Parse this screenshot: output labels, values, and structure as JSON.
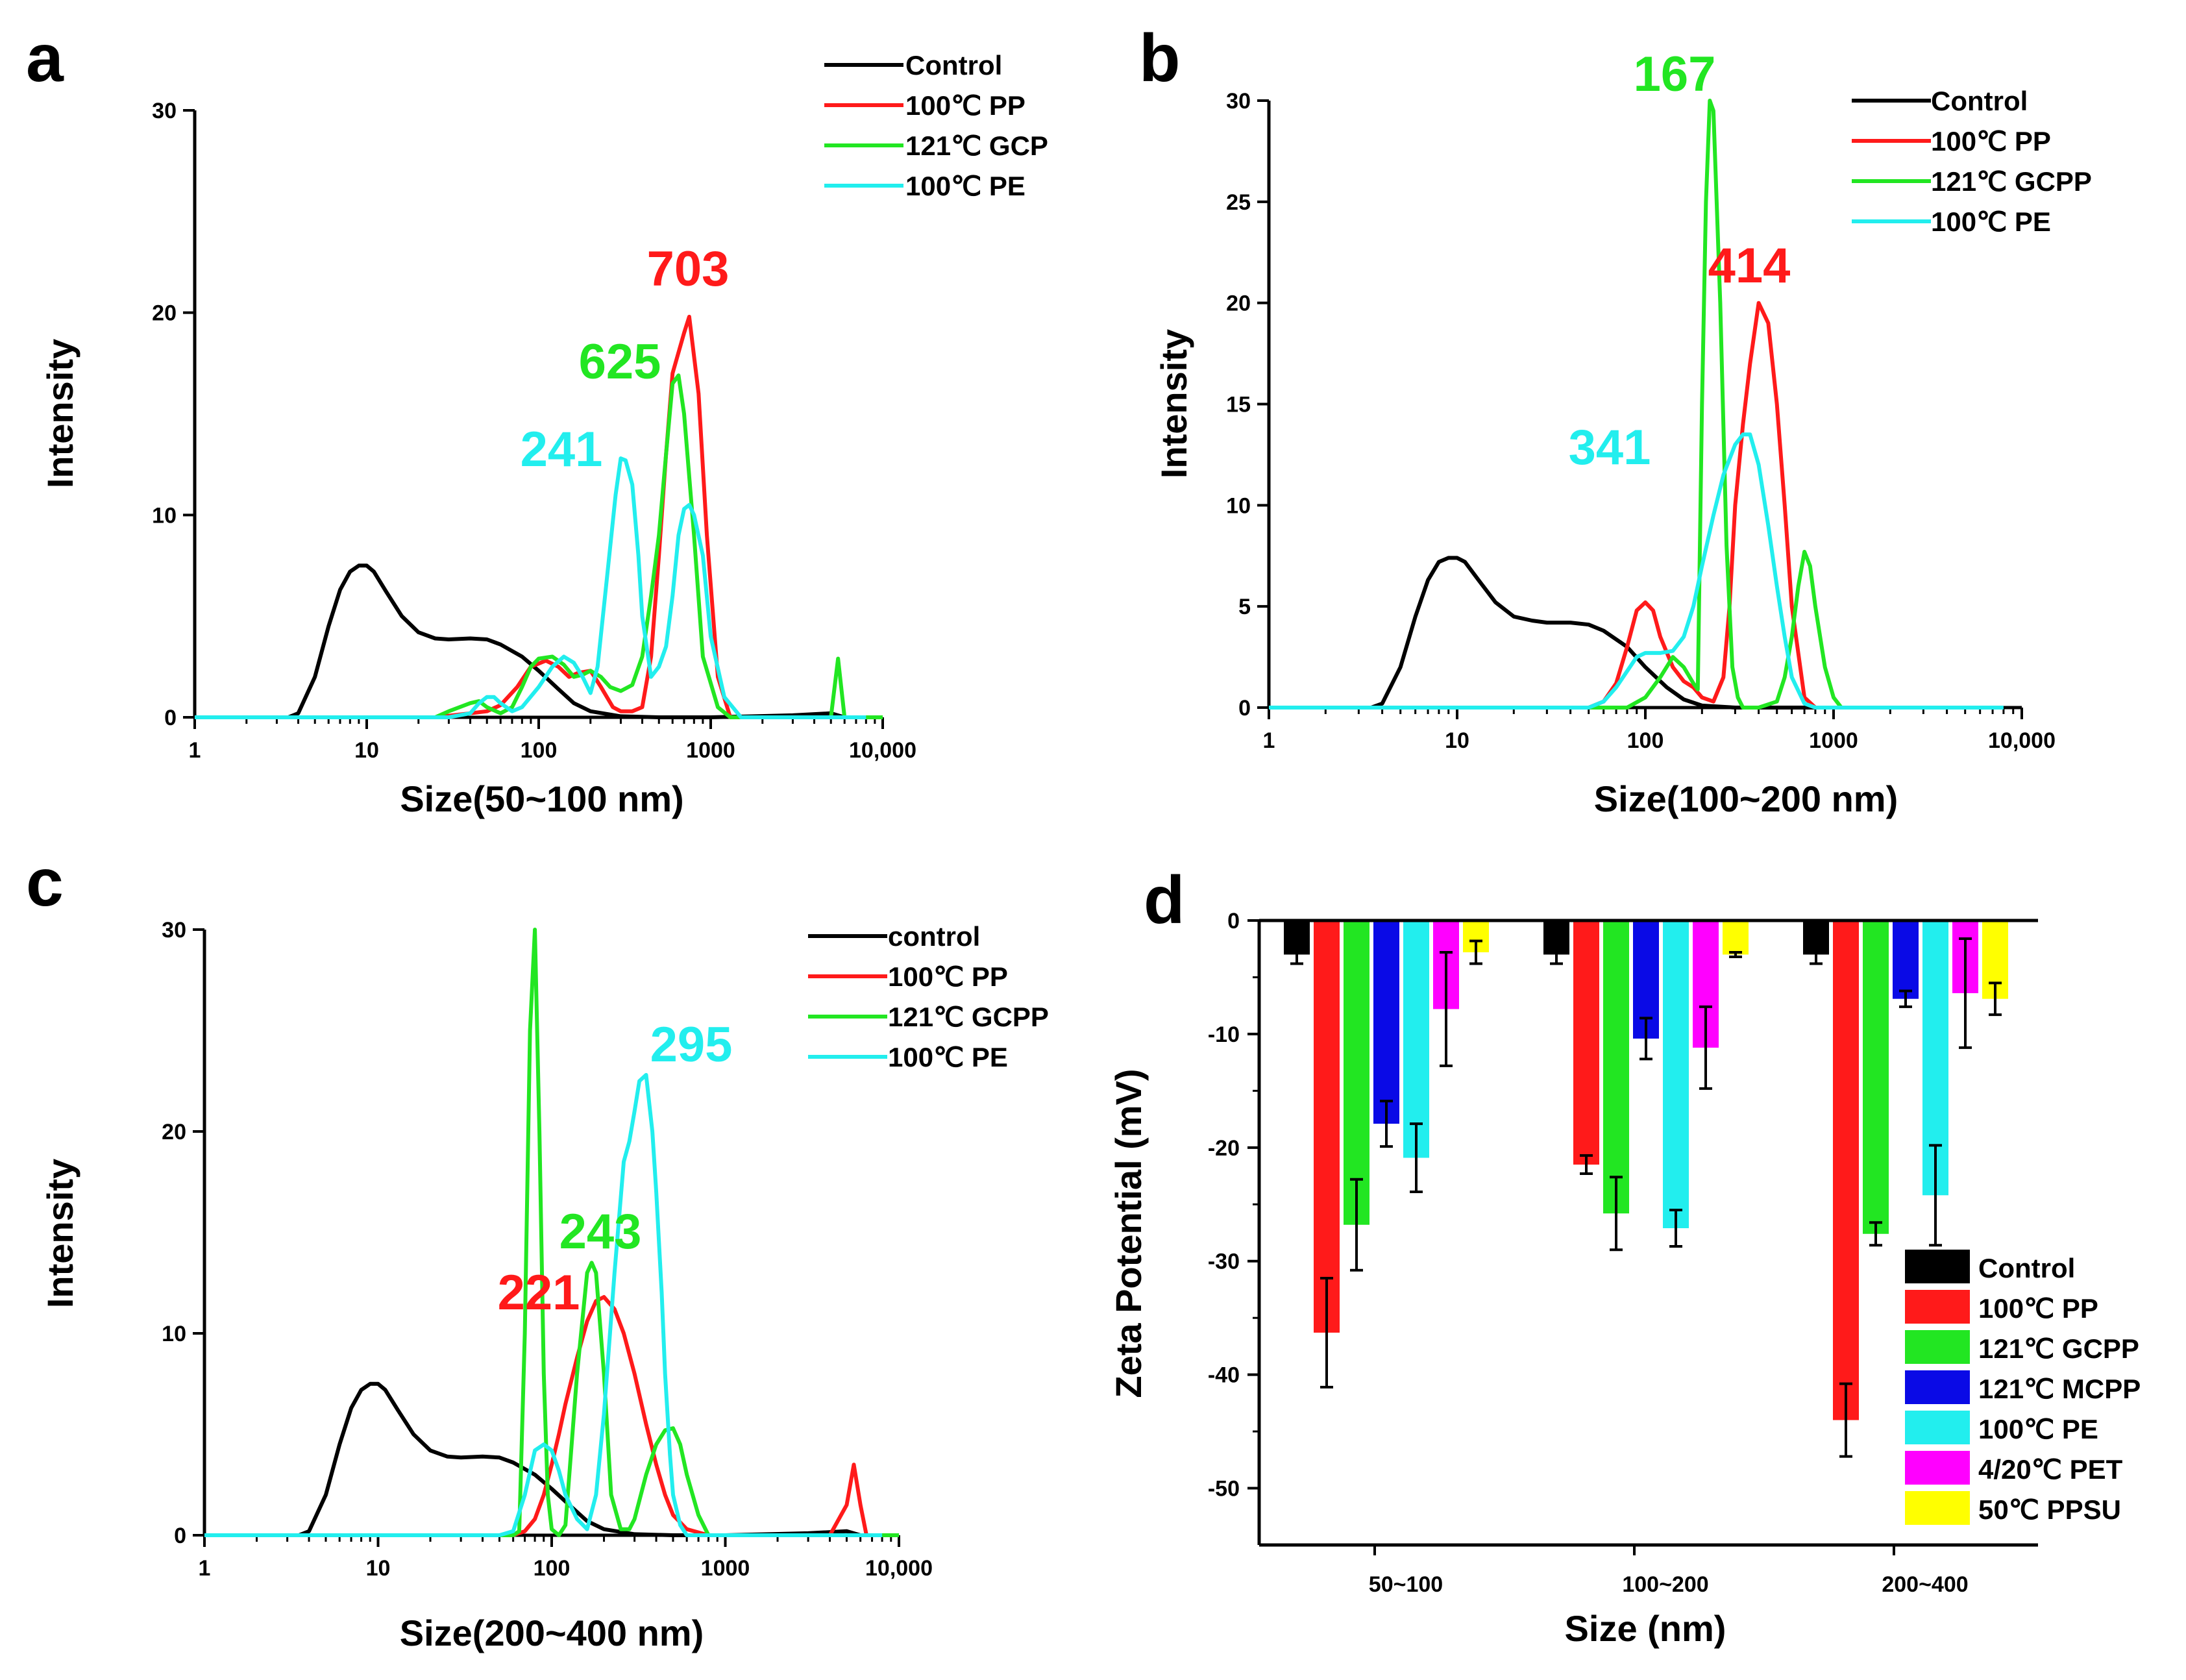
{
  "colors": {
    "black": "#000000",
    "red": "#ff1a1a",
    "green": "#22e622",
    "blue": "#0a0ae6",
    "cyan": "#22eeee",
    "magenta": "#ff00ff",
    "yellow": "#ffff00"
  },
  "chart_data": [
    {
      "panel": "a",
      "type": "line",
      "xscale": "log",
      "xlim": [
        1,
        10000
      ],
      "ylim": [
        0,
        30
      ],
      "xticks": [
        1,
        10,
        100,
        1000,
        10000
      ],
      "xtick_labels": [
        "1",
        "10",
        "100",
        "1000",
        "10,000"
      ],
      "yticks": [
        0,
        10,
        20,
        30
      ],
      "ytick_labels": [
        "0",
        "10",
        "20",
        "30"
      ],
      "xlabel": "Size(50~100 nm)",
      "ylabel": "Intensity",
      "legend": [
        "Control",
        "100℃ PP",
        "121℃ GCP",
        "100℃ PE"
      ],
      "series": [
        {
          "name": "Control",
          "color": "black",
          "x": [
            1,
            3.5,
            4,
            5,
            6,
            7,
            8,
            9,
            10,
            11,
            13,
            16,
            20,
            25,
            30,
            40,
            50,
            60,
            80,
            100,
            130,
            160,
            200,
            300,
            500,
            1000,
            3000,
            5000,
            6000
          ],
          "y": [
            0,
            0,
            0.2,
            2,
            4.5,
            6.3,
            7.2,
            7.5,
            7.5,
            7.2,
            6.2,
            5,
            4.2,
            3.9,
            3.85,
            3.9,
            3.85,
            3.6,
            3,
            2.3,
            1.4,
            0.7,
            0.3,
            0.05,
            0,
            0,
            0.1,
            0.2,
            0
          ]
        },
        {
          "name": "100℃ PP",
          "color": "red",
          "x": [
            1,
            25,
            40,
            50,
            60,
            75,
            90,
            110,
            130,
            150,
            170,
            200,
            230,
            270,
            300,
            350,
            400,
            450,
            500,
            550,
            600,
            700,
            750,
            850,
            950,
            1100,
            1300,
            10000
          ],
          "y": [
            0,
            0,
            0.2,
            0.3,
            0.6,
            1.5,
            2.5,
            2.8,
            2.5,
            2.0,
            2.2,
            2.3,
            1.5,
            0.5,
            0.3,
            0.3,
            0.5,
            3,
            8,
            13,
            17,
            19,
            19.8,
            16,
            9,
            2,
            0,
            0
          ]
        },
        {
          "name": "121℃ GCP",
          "color": "green",
          "x": [
            1,
            25,
            30,
            40,
            45,
            50,
            60,
            70,
            80,
            90,
            100,
            120,
            140,
            160,
            180,
            200,
            230,
            260,
            300,
            350,
            400,
            450,
            500,
            550,
            600,
            650,
            700,
            800,
            900,
            1100,
            1300,
            2000,
            5000,
            5500,
            6000,
            10000
          ],
          "y": [
            0,
            0,
            0.3,
            0.7,
            0.8,
            0.5,
            0.2,
            0.5,
            1.5,
            2.5,
            2.9,
            3.0,
            2.6,
            2.0,
            2.1,
            2.3,
            2.0,
            1.5,
            1.3,
            1.6,
            3,
            6,
            9,
            13,
            16.5,
            16.9,
            15,
            9,
            3,
            0.5,
            0,
            0,
            0,
            2.9,
            0,
            0
          ]
        },
        {
          "name": "100℃ PE",
          "color": "cyan",
          "x": [
            1,
            30,
            40,
            45,
            50,
            55,
            60,
            70,
            80,
            100,
            120,
            140,
            160,
            180,
            200,
            220,
            250,
            280,
            300,
            320,
            350,
            380,
            400,
            450,
            500,
            550,
            600,
            650,
            700,
            750,
            800,
            900,
            1000,
            1200,
            1500,
            3000,
            7000,
            8000
          ],
          "y": [
            0,
            0,
            0.2,
            0.7,
            1.0,
            1.0,
            0.7,
            0.3,
            0.5,
            1.5,
            2.5,
            3.0,
            2.7,
            2.0,
            1.2,
            2.5,
            7,
            11,
            12.8,
            12.7,
            11.5,
            8,
            5,
            2,
            2.5,
            3.5,
            6,
            9,
            10.3,
            10.5,
            10,
            8,
            4,
            1,
            0,
            0,
            0,
            0
          ]
        }
      ],
      "annotations": [
        {
          "text": "703",
          "color": "red"
        },
        {
          "text": "625",
          "color": "green"
        },
        {
          "text": "241",
          "color": "cyan"
        }
      ]
    },
    {
      "panel": "b",
      "type": "line",
      "xscale": "log",
      "xlim": [
        1,
        10000
      ],
      "ylim": [
        0,
        30
      ],
      "xticks": [
        1,
        10,
        100,
        1000,
        10000
      ],
      "xtick_labels": [
        "1",
        "10",
        "100",
        "1000",
        "10,000"
      ],
      "yticks": [
        0,
        5,
        10,
        15,
        20,
        25,
        30
      ],
      "ytick_labels": [
        "0",
        "5",
        "10",
        "15",
        "20",
        "25",
        "30"
      ],
      "xlabel": "Size(100~200 nm)",
      "ylabel": "Intensity",
      "legend": [
        "Control",
        "100℃ PP",
        "121℃ GCPP",
        "100℃ PE"
      ],
      "series": [
        {
          "name": "Control",
          "color": "black",
          "x": [
            1,
            3.5,
            4,
            5,
            6,
            7,
            8,
            9,
            10,
            11,
            13,
            16,
            20,
            25,
            30,
            40,
            50,
            60,
            80,
            100,
            130,
            160,
            200,
            300,
            500,
            1000
          ],
          "y": [
            0,
            0,
            0.2,
            2,
            4.5,
            6.3,
            7.2,
            7.4,
            7.4,
            7.2,
            6.3,
            5.2,
            4.5,
            4.3,
            4.2,
            4.2,
            4.1,
            3.8,
            3,
            2.0,
            1.0,
            0.4,
            0.1,
            0,
            0,
            0
          ]
        },
        {
          "name": "100℃ PP",
          "color": "red",
          "x": [
            1,
            50,
            60,
            70,
            80,
            90,
            100,
            110,
            120,
            140,
            160,
            180,
            200,
            230,
            260,
            280,
            300,
            330,
            360,
            400,
            450,
            500,
            550,
            600,
            700,
            800
          ],
          "y": [
            0,
            0,
            0.3,
            1.2,
            3,
            4.8,
            5.2,
            4.8,
            3.5,
            2,
            1.3,
            1.0,
            0.5,
            0.3,
            1.5,
            5,
            10,
            14,
            17,
            20,
            19,
            15,
            10,
            5,
            0.5,
            0
          ]
        },
        {
          "name": "121℃ GCPP",
          "color": "green",
          "x": [
            1,
            80,
            100,
            120,
            140,
            160,
            180,
            190,
            200,
            210,
            220,
            230,
            250,
            270,
            290,
            310,
            330,
            350,
            400,
            500,
            550,
            600,
            650,
            700,
            750,
            800,
            900,
            1000,
            1100
          ],
          "y": [
            0,
            0,
            0.5,
            1.5,
            2.5,
            2.0,
            1.2,
            0.9,
            15,
            25,
            30,
            29.5,
            20,
            8,
            2,
            0.5,
            0,
            0,
            0,
            0.3,
            1.5,
            3.5,
            6,
            7.7,
            7,
            5,
            2,
            0.5,
            0
          ]
        },
        {
          "name": "100℃ PE",
          "color": "cyan",
          "x": [
            1,
            50,
            60,
            70,
            80,
            90,
            100,
            120,
            140,
            160,
            180,
            200,
            230,
            260,
            300,
            330,
            360,
            400,
            450,
            500,
            550,
            600,
            700,
            800,
            1000,
            2000,
            5000,
            8000
          ],
          "y": [
            0,
            0,
            0.3,
            1.0,
            1.8,
            2.5,
            2.7,
            2.7,
            2.8,
            3.5,
            5,
            7,
            9.5,
            11.5,
            13,
            13.5,
            13.5,
            12,
            9,
            6,
            3.5,
            1.5,
            0.2,
            0,
            0,
            0,
            0,
            0
          ]
        }
      ],
      "annotations": [
        {
          "text": "167",
          "color": "green"
        },
        {
          "text": "414",
          "color": "red"
        },
        {
          "text": "341",
          "color": "cyan"
        }
      ]
    },
    {
      "panel": "c",
      "type": "line",
      "xscale": "log",
      "xlim": [
        1,
        10000
      ],
      "ylim": [
        0,
        30
      ],
      "xticks": [
        1,
        10,
        100,
        1000,
        10000
      ],
      "xtick_labels": [
        "1",
        "10",
        "100",
        "1000",
        "10,000"
      ],
      "yticks": [
        0,
        10,
        20,
        30
      ],
      "ytick_labels": [
        "0",
        "10",
        "20",
        "30"
      ],
      "xlabel": "Size(200~400 nm)",
      "ylabel": "Intensity",
      "legend": [
        "control",
        "100℃ PP",
        "121℃ GCPP",
        "100℃ PE"
      ],
      "series": [
        {
          "name": "control",
          "color": "black",
          "x": [
            1,
            3.5,
            4,
            5,
            6,
            7,
            8,
            9,
            10,
            11,
            13,
            16,
            20,
            25,
            30,
            40,
            50,
            60,
            80,
            100,
            130,
            160,
            200,
            300,
            500,
            1000,
            3000,
            5000,
            6000
          ],
          "y": [
            0,
            0,
            0.2,
            2,
            4.5,
            6.3,
            7.2,
            7.5,
            7.5,
            7.2,
            6.2,
            5,
            4.2,
            3.9,
            3.85,
            3.9,
            3.85,
            3.6,
            3,
            2.3,
            1.4,
            0.7,
            0.3,
            0.05,
            0,
            0,
            0.1,
            0.2,
            0
          ]
        },
        {
          "name": "100℃ PP",
          "color": "red",
          "x": [
            1,
            60,
            70,
            80,
            90,
            100,
            110,
            120,
            140,
            160,
            180,
            200,
            230,
            260,
            300,
            350,
            400,
            450,
            500,
            600,
            800,
            1000,
            4000,
            5000,
            5500,
            6000,
            6500,
            10000
          ],
          "y": [
            0,
            0,
            0.2,
            0.8,
            2,
            3.5,
            5,
            6.5,
            8.8,
            10.6,
            11.6,
            11.8,
            11.2,
            10,
            8,
            5.5,
            3.5,
            2,
            1,
            0.3,
            0,
            0,
            0,
            1.5,
            3.5,
            1.5,
            0,
            0
          ]
        },
        {
          "name": "121℃ GCPP",
          "color": "green",
          "x": [
            1,
            60,
            65,
            70,
            75,
            80,
            85,
            90,
            95,
            100,
            110,
            120,
            140,
            160,
            170,
            180,
            200,
            220,
            250,
            280,
            300,
            350,
            400,
            450,
            500,
            550,
            600,
            700,
            800,
            10000
          ],
          "y": [
            0,
            0,
            0.2,
            10,
            25,
            30,
            20,
            8,
            2,
            0.3,
            0,
            0.5,
            8,
            13,
            13.5,
            13,
            8,
            2,
            0.3,
            0.3,
            0.8,
            3,
            4.5,
            5.2,
            5.3,
            4.5,
            3,
            1,
            0,
            0
          ]
        },
        {
          "name": "100℃ PE",
          "color": "cyan",
          "x": [
            1,
            50,
            60,
            70,
            80,
            90,
            100,
            110,
            120,
            140,
            160,
            180,
            200,
            230,
            260,
            280,
            300,
            320,
            350,
            380,
            400,
            430,
            450,
            480,
            500,
            550,
            600,
            700,
            1000,
            8000
          ],
          "y": [
            0,
            0,
            0.2,
            2,
            4.2,
            4.5,
            4.2,
            3.2,
            2,
            0.8,
            0.3,
            2,
            6,
            13,
            18.5,
            19.5,
            21,
            22.5,
            22.8,
            20,
            17,
            12,
            8,
            4,
            2,
            0.5,
            0,
            0,
            0,
            0
          ]
        }
      ],
      "annotations": [
        {
          "text": "295",
          "color": "cyan"
        },
        {
          "text": "243",
          "color": "green"
        },
        {
          "text": "221",
          "color": "red"
        }
      ]
    },
    {
      "panel": "d",
      "type": "bar",
      "categories": [
        "50~100",
        "100~200",
        "200~400"
      ],
      "xlabel": "Size (nm)",
      "ylabel": "Zeta Potential (mV)",
      "ylim": [
        -55,
        0
      ],
      "yticks": [
        0,
        -10,
        -20,
        -30,
        -40,
        -50
      ],
      "ytick_labels": [
        "0",
        "-10",
        "-20",
        "-30",
        "-40",
        "-50"
      ],
      "series": [
        {
          "name": "Control",
          "color": "black",
          "values": [
            -3.0,
            -3.0,
            -3.0
          ],
          "errors": [
            0.8,
            0.8,
            0.8
          ]
        },
        {
          "name": "100℃ PP",
          "color": "red",
          "values": [
            -36.3,
            -21.5,
            -44.0
          ],
          "errors": [
            4.8,
            0.8,
            3.2
          ]
        },
        {
          "name": "121℃ GCPP",
          "color": "green",
          "values": [
            -26.8,
            -25.8,
            -27.6
          ],
          "errors": [
            4.0,
            3.2,
            1.0
          ]
        },
        {
          "name": "121℃ MCPP",
          "color": "blue",
          "values": [
            -17.9,
            -10.4,
            -6.9
          ],
          "errors": [
            2.0,
            1.8,
            0.7
          ]
        },
        {
          "name": "100℃ PE",
          "color": "cyan",
          "values": [
            -20.9,
            -27.1,
            -24.2
          ],
          "errors": [
            3.0,
            1.6,
            4.4
          ]
        },
        {
          "name": "4/20℃ PET",
          "color": "magenta",
          "values": [
            -7.8,
            -11.2,
            -6.4
          ],
          "errors": [
            5.0,
            3.6,
            4.8
          ]
        },
        {
          "name": "50℃ PPSU",
          "color": "yellow",
          "values": [
            -2.8,
            -3.0,
            -6.9
          ],
          "errors": [
            1.0,
            0.2,
            1.4
          ]
        }
      ]
    }
  ]
}
